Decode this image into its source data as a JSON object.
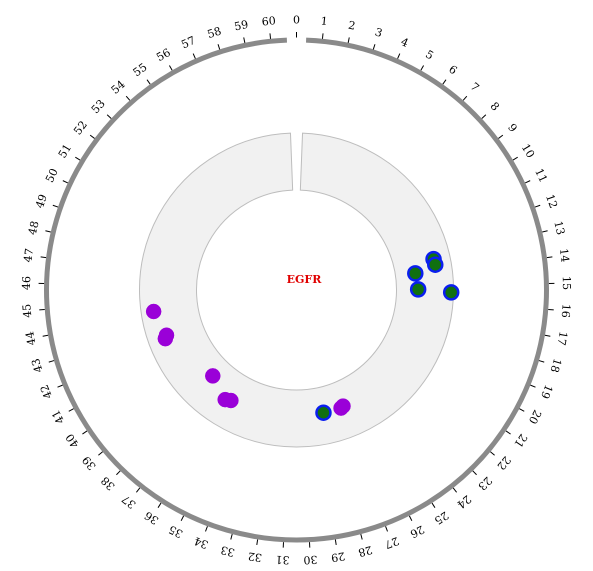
{
  "chart_data": {
    "type": "scatter",
    "layout": "circular",
    "title": "",
    "center_label": "EGFR",
    "center_label_color": "#e00000",
    "axis": {
      "min": 0,
      "max": 61,
      "ticks": [
        0,
        1,
        2,
        3,
        4,
        5,
        6,
        7,
        8,
        9,
        10,
        11,
        12,
        13,
        14,
        15,
        16,
        17,
        18,
        19,
        20,
        21,
        22,
        23,
        24,
        25,
        26,
        27,
        28,
        29,
        30,
        31,
        32,
        33,
        34,
        35,
        36,
        37,
        38,
        39,
        40,
        41,
        42,
        43,
        44,
        45,
        46,
        47,
        48,
        49,
        50,
        51,
        52,
        53,
        54,
        55,
        56,
        57,
        58,
        59,
        60
      ],
      "labels": [
        "0",
        "1",
        "2",
        "3",
        "4",
        "5",
        "6",
        "7",
        "8",
        "9",
        "10",
        "11",
        "12",
        "13",
        "14",
        "15",
        "16",
        "17",
        "18",
        "19",
        "20",
        "21",
        "22",
        "23",
        "24",
        "25",
        "26",
        "27",
        "28",
        "29",
        "30",
        "31",
        "32",
        "33",
        "34",
        "35",
        "36",
        "37",
        "38",
        "39",
        "40",
        "41",
        "42",
        "43",
        "44",
        "45",
        "46",
        "47",
        "48",
        "49",
        "50",
        "51",
        "52",
        "53",
        "54",
        "55",
        "56",
        "57",
        "58",
        "59",
        "60"
      ]
    },
    "radial_range": [
      0,
      1
    ],
    "series": [
      {
        "style": "blue-ring-green-fill",
        "fill": "#107010",
        "stroke": "#0a1ef0",
        "points": [
          {
            "x": 13.1,
            "y": 0.71
          },
          {
            "x": 13.5,
            "y": 0.72
          },
          {
            "x": 13.9,
            "y": 0.35
          },
          {
            "x": 15.2,
            "y": 0.38
          },
          {
            "x": 15.4,
            "y": 0.96
          },
          {
            "x": 28.4,
            "y": 0.45
          }
        ]
      },
      {
        "style": "purple",
        "fill": "#9a00d8",
        "stroke": "#9a00d8",
        "points": [
          {
            "x": 26.8,
            "y": 0.44
          },
          {
            "x": 27.0,
            "y": 0.46
          },
          {
            "x": 35.7,
            "y": 0.5
          },
          {
            "x": 36.1,
            "y": 0.54
          },
          {
            "x": 38.0,
            "y": 0.35
          },
          {
            "x": 42.3,
            "y": 0.7
          },
          {
            "x": 42.5,
            "y": 0.66
          },
          {
            "x": 44.3,
            "y": 0.78
          }
        ]
      }
    ],
    "colors": {
      "outer_ring": "#8a8a8a",
      "track_fill": "#f1f1f1",
      "track_stroke": "#bdbdbd"
    }
  }
}
